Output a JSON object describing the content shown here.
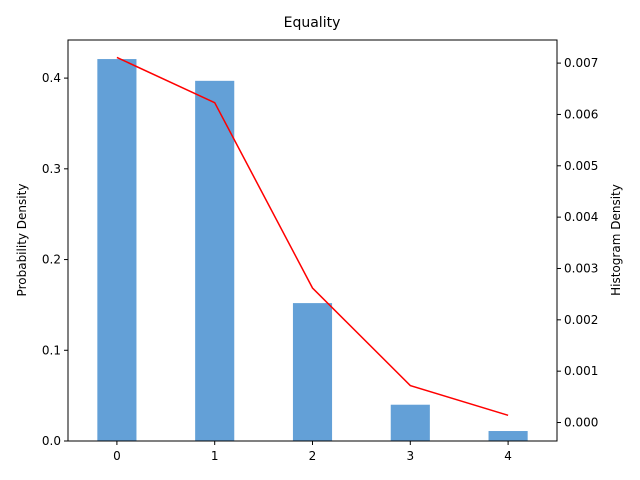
{
  "chart_data": {
    "type": "bar",
    "title": "Equality",
    "xlabel": "",
    "ylabel": "Probability Density",
    "y2label": "Histogram Density",
    "categories": [
      0,
      1,
      2,
      3,
      4
    ],
    "xlim": [
      -0.5,
      4.5
    ],
    "ylim": [
      0,
      0.442
    ],
    "y2lim": [
      -0.00036,
      0.00745
    ],
    "yticks": [
      0.0,
      0.1,
      0.2,
      0.3,
      0.4
    ],
    "y2ticks": [
      0.0,
      0.001,
      0.002,
      0.003,
      0.004,
      0.005,
      0.006,
      0.007
    ],
    "series": [
      {
        "type": "bar",
        "axis": "left",
        "color": "#5b9bd5",
        "x": [
          0,
          1,
          2,
          3,
          4
        ],
        "values": [
          0.421,
          0.397,
          0.152,
          0.04,
          0.011
        ]
      },
      {
        "type": "line",
        "axis": "right",
        "color": "#ff0000",
        "x": [
          0,
          1,
          2,
          3,
          4
        ],
        "values": [
          0.00711,
          0.00623,
          0.00262,
          0.00072,
          0.00014
        ]
      }
    ],
    "grid": false,
    "legend": "none"
  }
}
